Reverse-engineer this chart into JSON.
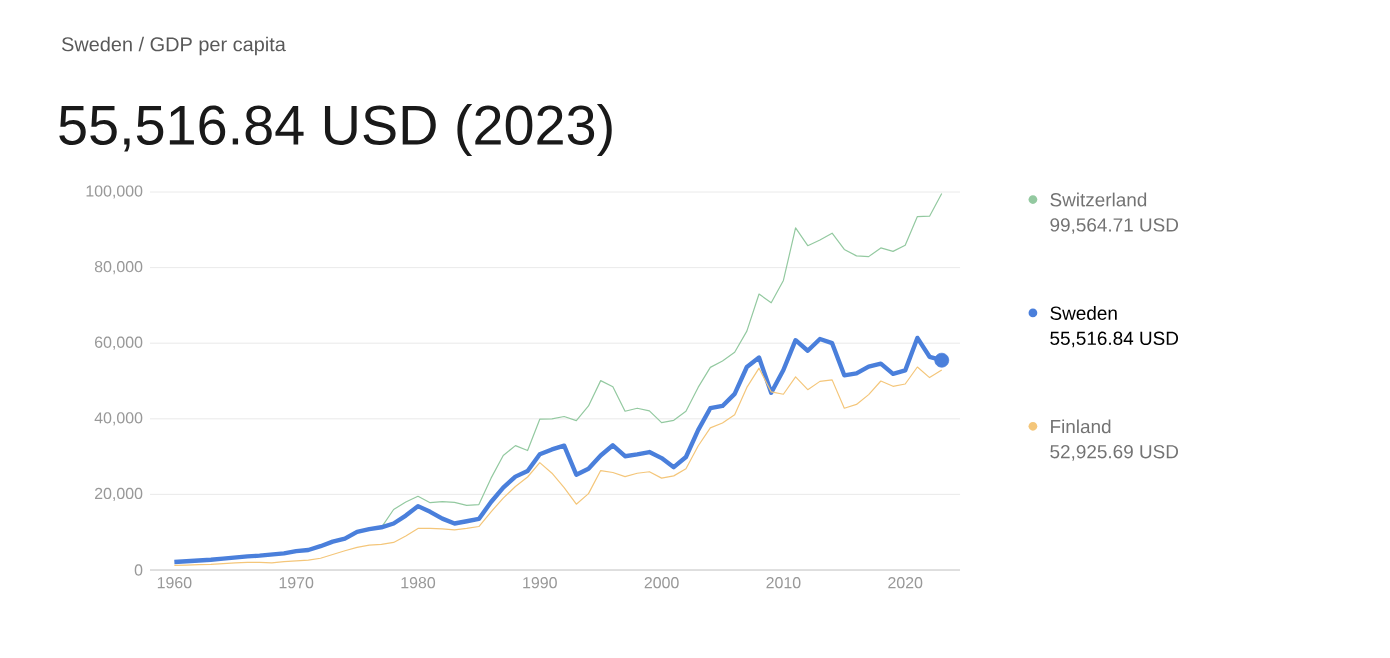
{
  "chart_data": {
    "type": "line",
    "title": "Sweden / GDP per capita",
    "subtitle": "55,516.84 USD (2023)",
    "x": [
      1960,
      1961,
      1962,
      1963,
      1964,
      1965,
      1966,
      1967,
      1968,
      1969,
      1970,
      1971,
      1972,
      1973,
      1974,
      1975,
      1976,
      1977,
      1978,
      1979,
      1980,
      1981,
      1982,
      1983,
      1984,
      1985,
      1986,
      1987,
      1988,
      1989,
      1990,
      1991,
      1992,
      1993,
      1994,
      1995,
      1996,
      1997,
      1998,
      1999,
      2000,
      2001,
      2002,
      2003,
      2004,
      2005,
      2006,
      2007,
      2008,
      2009,
      2010,
      2011,
      2012,
      2013,
      2014,
      2015,
      2016,
      2017,
      2018,
      2019,
      2020,
      2021,
      2022,
      2023
    ],
    "series": [
      {
        "name": "Switzerland",
        "color": "#93c9a0",
        "values": [
          null,
          null,
          null,
          null,
          null,
          null,
          null,
          null,
          null,
          null,
          null,
          null,
          null,
          null,
          null,
          null,
          null,
          11300,
          16000,
          18000,
          19500,
          17800,
          18100,
          17900,
          17100,
          17300,
          24300,
          30300,
          32900,
          31600,
          39900,
          40000,
          40600,
          39500,
          43400,
          50100,
          48500,
          42000,
          42800,
          42100,
          39000,
          39600,
          42000,
          48300,
          53600,
          55300,
          57600,
          63200,
          73000,
          70700,
          76600,
          90500,
          85800,
          87300,
          89100,
          84800,
          83100,
          82900,
          85200,
          84300,
          85900,
          93500,
          93600,
          99600
        ]
      },
      {
        "name": "Sweden",
        "color": "#4a7fdb",
        "values": [
          2100,
          2300,
          2500,
          2700,
          3000,
          3300,
          3600,
          3800,
          4100,
          4400,
          5000,
          5300,
          6300,
          7500,
          8300,
          10100,
          10800,
          11300,
          12300,
          14400,
          16900,
          15400,
          13600,
          12300,
          12900,
          13500,
          18000,
          21800,
          24700,
          26200,
          30600,
          31900,
          32900,
          25200,
          26800,
          30300,
          33000,
          30100,
          30600,
          31200,
          29600,
          27200,
          29900,
          37000,
          42800,
          43400,
          46600,
          53700,
          56200,
          46900,
          52900,
          60800,
          58000,
          61100,
          60000,
          51500,
          52000,
          53800,
          54600,
          51900,
          52800,
          61400,
          56400,
          55500
        ]
      },
      {
        "name": "Finland",
        "color": "#f4c67a",
        "values": [
          1200,
          1300,
          1400,
          1500,
          1700,
          1900,
          2000,
          2000,
          1900,
          2200,
          2400,
          2600,
          3100,
          4100,
          5100,
          6000,
          6600,
          6800,
          7300,
          9000,
          11000,
          11000,
          10900,
          10600,
          11000,
          11500,
          15400,
          19000,
          22100,
          24600,
          28400,
          25600,
          21800,
          17400,
          20200,
          26300,
          25800,
          24700,
          25600,
          26000,
          24300,
          24900,
          26800,
          32800,
          37600,
          38900,
          41100,
          48300,
          53400,
          47100,
          46500,
          51100,
          47700,
          49900,
          50300,
          42800,
          43800,
          46400,
          50000,
          48600,
          49200,
          53700,
          50900,
          52900
        ]
      }
    ],
    "annotations": [
      "99,564.71 USD",
      "55,516.84 USD",
      "52,925.69 USD"
    ],
    "xlim": [
      1958,
      2024.5
    ],
    "ylim": [
      0,
      100000
    ],
    "xticks": [
      1960,
      1970,
      1980,
      1990,
      2000,
      2010,
      2020
    ],
    "yticks": [
      0,
      {
        "value": 20000,
        "label": "20,000"
      },
      {
        "value": 40000,
        "label": "40,000"
      },
      {
        "value": 60000,
        "label": "60,000"
      },
      {
        "value": 80000,
        "label": "80,000"
      },
      {
        "value": 100000,
        "label": "100,000"
      }
    ],
    "grid": "y",
    "legend": "right"
  }
}
